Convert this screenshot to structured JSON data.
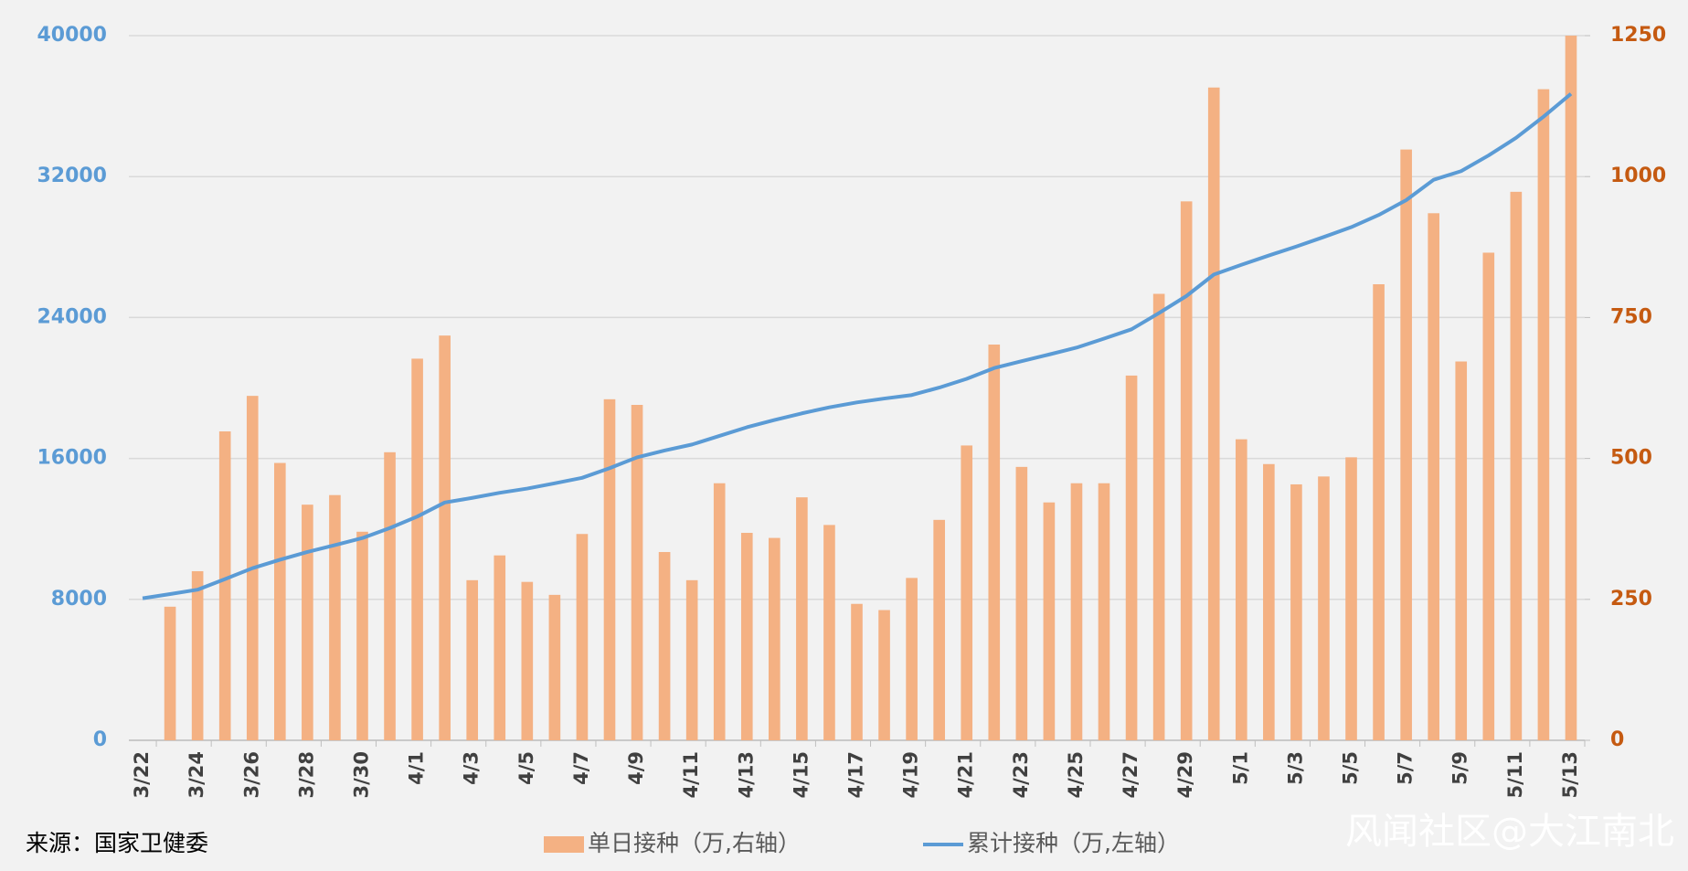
{
  "chart_data": {
    "type": "bar_line",
    "categories": [
      "3/22",
      null,
      "3/24",
      null,
      "3/26",
      null,
      "3/28",
      null,
      "3/30",
      null,
      "4/1",
      null,
      "4/3",
      null,
      "4/5",
      null,
      "4/7",
      null,
      "4/9",
      null,
      "4/11",
      null,
      "4/13",
      null,
      "4/15",
      null,
      "4/17",
      null,
      "4/19",
      null,
      "4/21",
      null,
      "4/23",
      null,
      "4/25",
      null,
      "4/27",
      null,
      "4/29",
      null,
      "5/1",
      null,
      "5/3",
      null,
      "5/5",
      null,
      "5/7",
      null,
      "5/9",
      null,
      "5/11",
      null,
      "5/13"
    ],
    "series": [
      {
        "name": "单日接种（万,右轴）",
        "type": "bar",
        "axis": "y2",
        "color": "#f4b183",
        "values": [
          null,
          237,
          300,
          548,
          611,
          492,
          418,
          435,
          370,
          511,
          677,
          718,
          284,
          328,
          281,
          258,
          366,
          605,
          595,
          334,
          284,
          456,
          368,
          359,
          431,
          382,
          242,
          231,
          288,
          391,
          523,
          702,
          485,
          422,
          456,
          456,
          647,
          792,
          956,
          1158,
          534,
          490,
          454,
          468,
          502,
          809,
          1048,
          935,
          672,
          865,
          973,
          1155,
          1250
        ]
      },
      {
        "name": "累计接种（万,左轴）",
        "type": "line",
        "axis": "y",
        "color": "#5b9bd5",
        "values": [
          8060,
          8300,
          8550,
          9150,
          9770,
          10250,
          10690,
          11080,
          11480,
          12050,
          12700,
          13500,
          13760,
          14050,
          14290,
          14590,
          14900,
          15450,
          16060,
          16450,
          16790,
          17280,
          17770,
          18180,
          18560,
          18900,
          19180,
          19400,
          19600,
          20020,
          20520,
          21130,
          21520,
          21900,
          22290,
          22800,
          23330,
          24250,
          25220,
          26440,
          26990,
          27520,
          28030,
          28570,
          29130,
          29820,
          30660,
          31820,
          32310,
          33200,
          34200,
          35400,
          36700
        ]
      }
    ],
    "ylim": [
      0,
      40000
    ],
    "yticks": [
      0,
      8000,
      16000,
      24000,
      32000,
      40000
    ],
    "ytick_color": "#5b9bd5",
    "y2lim": [
      0,
      1250
    ],
    "y2ticks": [
      0,
      250,
      500,
      750,
      1000,
      1250
    ],
    "y2tick_color": "#c55a11",
    "grid": true,
    "legend": "bottom",
    "source": "来源：国家卫健委",
    "watermark": "风闻社区@大江南北"
  }
}
